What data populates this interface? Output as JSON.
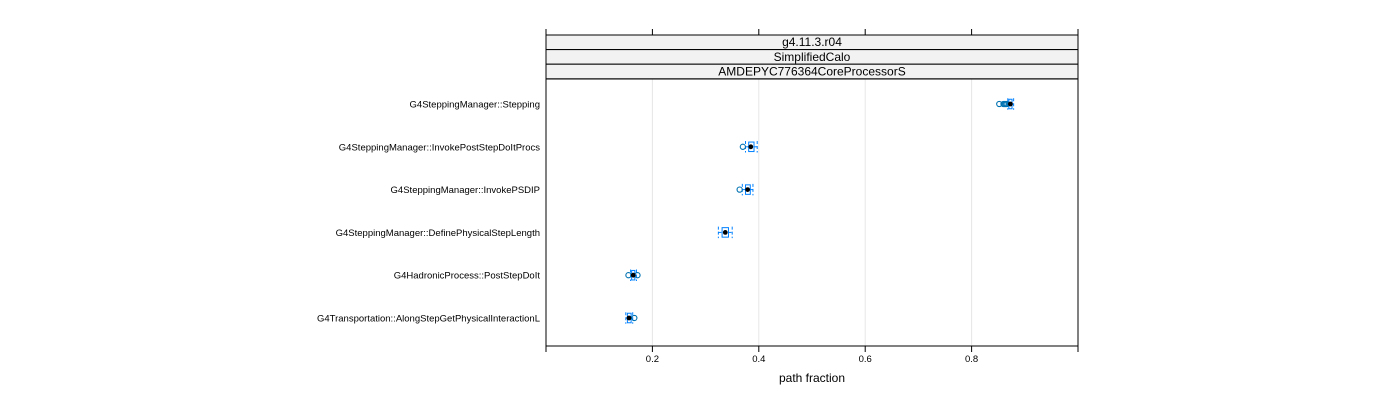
{
  "chart_data": {
    "type": "boxplot",
    "panel_strips": [
      "g4.11.3.r04",
      "SimplifiedCalo",
      "AMDEPYC776364CoreProcessorS"
    ],
    "xlabel": "path fraction",
    "xlim": [
      0.0,
      1.0
    ],
    "x_ticks": [
      0.2,
      0.4,
      0.6,
      0.8
    ],
    "x_tick_labels": [
      "0.2",
      "0.4",
      "0.6",
      "0.8"
    ],
    "grid": true,
    "colors": {
      "box": "#0080ff",
      "outlier": "#0072b2",
      "median_dot": "#000000",
      "grid": "#e6e6e6",
      "strip_bg": "#f2f2f2"
    },
    "categories": [
      "G4SteppingManager::Stepping",
      "G4SteppingManager::InvokePostStepDoItProcs",
      "G4SteppingManager::InvokePSDIP",
      "G4SteppingManager::DefinePhysicalStepLength",
      "G4HadronicProcess::PostStepDoIt",
      "G4Transportation::AlongStepGetPhysicalInteractionL"
    ],
    "boxes": [
      {
        "category": "G4SteppingManager::Stepping",
        "whisker_low": 0.868,
        "q1": 0.87,
        "median": 0.873,
        "q3": 0.876,
        "whisker_high": 0.879,
        "outliers": [
          0.852,
          0.86,
          0.862,
          0.864,
          0.866
        ]
      },
      {
        "category": "G4SteppingManager::InvokePostStepDoItProcs",
        "whisker_low": 0.375,
        "q1": 0.381,
        "median": 0.385,
        "q3": 0.391,
        "whisker_high": 0.397,
        "outliers": [
          0.37
        ]
      },
      {
        "category": "G4SteppingManager::InvokePSDIP",
        "whisker_low": 0.369,
        "q1": 0.375,
        "median": 0.379,
        "q3": 0.384,
        "whisker_high": 0.389,
        "outliers": [
          0.364
        ]
      },
      {
        "category": "G4SteppingManager::DefinePhysicalStepLength",
        "whisker_low": 0.324,
        "q1": 0.331,
        "median": 0.337,
        "q3": 0.343,
        "whisker_high": 0.35,
        "outliers": []
      },
      {
        "category": "G4HadronicProcess::PostStepDoIt",
        "whisker_low": 0.159,
        "q1": 0.161,
        "median": 0.164,
        "q3": 0.167,
        "whisker_high": 0.17,
        "outliers": [
          0.155,
          0.172
        ]
      },
      {
        "category": "G4Transportation::AlongStepGetPhysicalInteractionL",
        "whisker_low": 0.15,
        "q1": 0.153,
        "median": 0.156,
        "q3": 0.16,
        "whisker_high": 0.163,
        "outliers": [
          0.166
        ]
      }
    ]
  }
}
